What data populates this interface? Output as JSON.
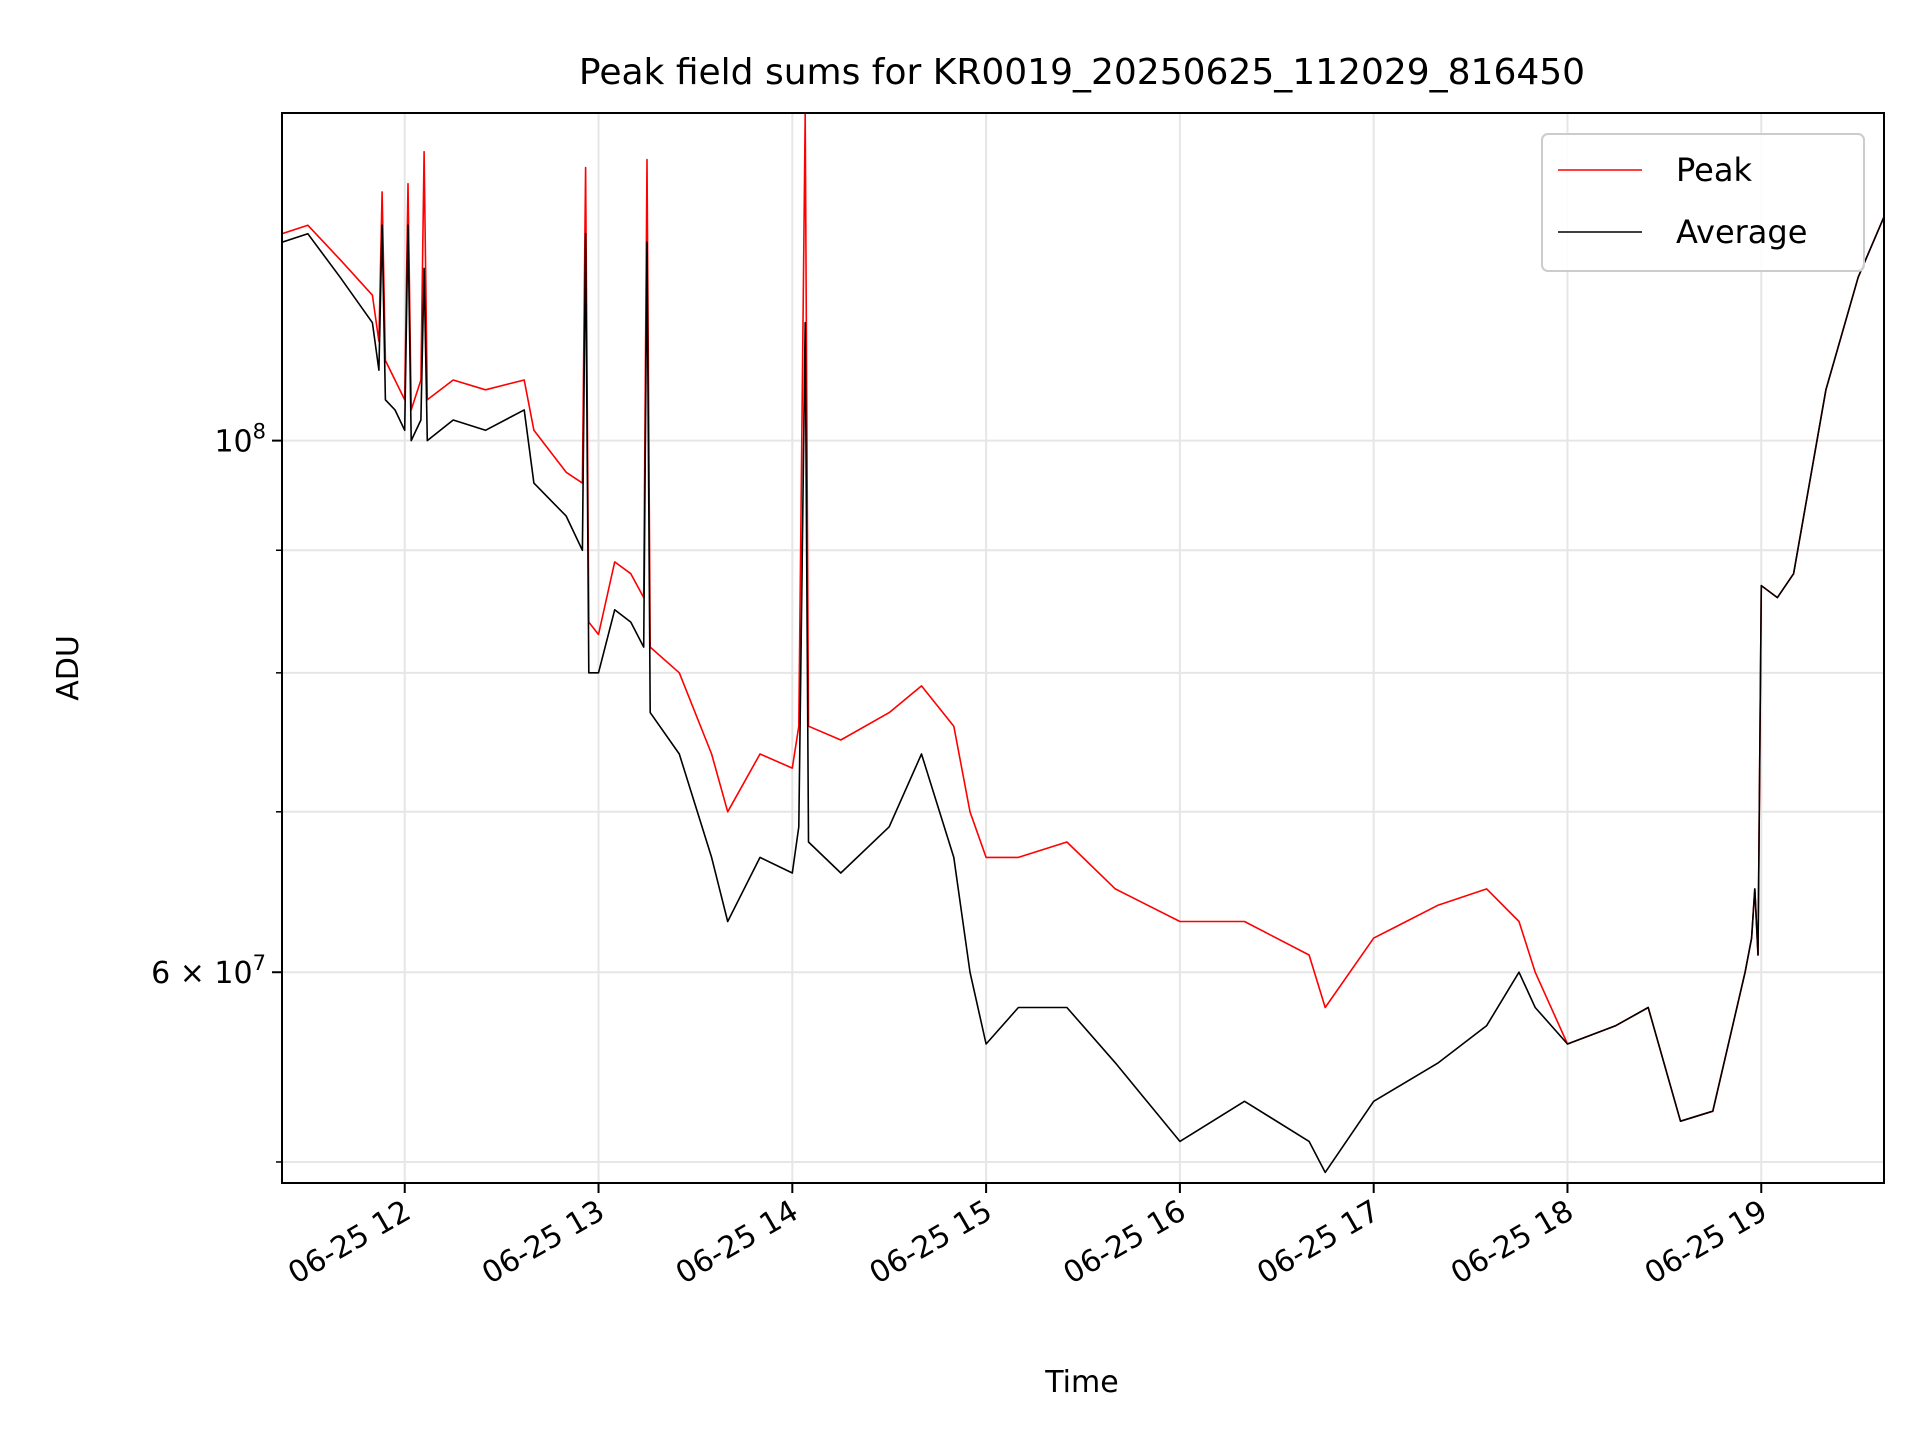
{
  "chart_data": {
    "type": "line",
    "title": "Peak field sums for KR0019_20250625_112029_816450",
    "xlabel": "Time",
    "ylabel": "ADU",
    "y_scale": "log",
    "grid": true,
    "legend_position": "top-right",
    "x_domain": [
      "2025-06-25T11:22",
      "2025-06-25T19:38"
    ],
    "ylim": [
      49000000,
      137000000
    ],
    "x_ticks": [
      {
        "value": "2025-06-25T12:00",
        "label": "06-25 12"
      },
      {
        "value": "2025-06-25T13:00",
        "label": "06-25 13"
      },
      {
        "value": "2025-06-25T14:00",
        "label": "06-25 14"
      },
      {
        "value": "2025-06-25T15:00",
        "label": "06-25 15"
      },
      {
        "value": "2025-06-25T16:00",
        "label": "06-25 16"
      },
      {
        "value": "2025-06-25T17:00",
        "label": "06-25 17"
      },
      {
        "value": "2025-06-25T18:00",
        "label": "06-25 18"
      },
      {
        "value": "2025-06-25T19:00",
        "label": "06-25 19"
      }
    ],
    "y_major_ticks": [
      {
        "value": 60000000,
        "base": "6 × 10",
        "exp": "7"
      },
      {
        "value": 100000000,
        "base": "10",
        "exp": "8"
      }
    ],
    "y_minor_ticks": [
      50000000,
      70000000,
      80000000,
      90000000
    ],
    "series": [
      {
        "name": "Peak",
        "color": "#ff0000",
        "points": [
          [
            "2025-06-25T11:22",
            122000000
          ],
          [
            "2025-06-25T11:30",
            123000000
          ],
          [
            "2025-06-25T11:40",
            119000000
          ],
          [
            "2025-06-25T11:50",
            115000000
          ],
          [
            "2025-06-25T11:52",
            110000000
          ],
          [
            "2025-06-25T11:53",
            127000000
          ],
          [
            "2025-06-25T11:54",
            108000000
          ],
          [
            "2025-06-25T11:57",
            106000000
          ],
          [
            "2025-06-25T12:00",
            104000000
          ],
          [
            "2025-06-25T12:01",
            128000000
          ],
          [
            "2025-06-25T12:02",
            103000000
          ],
          [
            "2025-06-25T12:05",
            106000000
          ],
          [
            "2025-06-25T12:06",
            132000000
          ],
          [
            "2025-06-25T12:07",
            104000000
          ],
          [
            "2025-06-25T12:15",
            106000000
          ],
          [
            "2025-06-25T12:25",
            105000000
          ],
          [
            "2025-06-25T12:37",
            106000000
          ],
          [
            "2025-06-25T12:40",
            101000000
          ],
          [
            "2025-06-25T12:50",
            97000000
          ],
          [
            "2025-06-25T12:55",
            96000000
          ],
          [
            "2025-06-25T12:56",
            130000000
          ],
          [
            "2025-06-25T12:57",
            84000000
          ],
          [
            "2025-06-25T13:00",
            83000000
          ],
          [
            "2025-06-25T13:05",
            89000000
          ],
          [
            "2025-06-25T13:10",
            88000000
          ],
          [
            "2025-06-25T13:14",
            86000000
          ],
          [
            "2025-06-25T13:15",
            131000000
          ],
          [
            "2025-06-25T13:16",
            82000000
          ],
          [
            "2025-06-25T13:25",
            80000000
          ],
          [
            "2025-06-25T13:35",
            74000000
          ],
          [
            "2025-06-25T13:40",
            70000000
          ],
          [
            "2025-06-25T13:50",
            74000000
          ],
          [
            "2025-06-25T14:00",
            73000000
          ],
          [
            "2025-06-25T14:02",
            76000000
          ],
          [
            "2025-06-25T14:04",
            137000000
          ],
          [
            "2025-06-25T14:05",
            76000000
          ],
          [
            "2025-06-25T14:15",
            75000000
          ],
          [
            "2025-06-25T14:30",
            77000000
          ],
          [
            "2025-06-25T14:40",
            79000000
          ],
          [
            "2025-06-25T14:50",
            76000000
          ],
          [
            "2025-06-25T14:55",
            70000000
          ],
          [
            "2025-06-25T15:00",
            67000000
          ],
          [
            "2025-06-25T15:10",
            67000000
          ],
          [
            "2025-06-25T15:25",
            68000000
          ],
          [
            "2025-06-25T15:40",
            65000000
          ],
          [
            "2025-06-25T16:00",
            63000000
          ],
          [
            "2025-06-25T16:20",
            63000000
          ],
          [
            "2025-06-25T16:40",
            61000000
          ],
          [
            "2025-06-25T16:45",
            58000000
          ],
          [
            "2025-06-25T17:00",
            62000000
          ],
          [
            "2025-06-25T17:20",
            64000000
          ],
          [
            "2025-06-25T17:35",
            65000000
          ],
          [
            "2025-06-25T17:45",
            63000000
          ],
          [
            "2025-06-25T17:50",
            60000000
          ],
          [
            "2025-06-25T18:00",
            56000000
          ],
          [
            "2025-06-25T18:15",
            57000000
          ],
          [
            "2025-06-25T18:25",
            58000000
          ],
          [
            "2025-06-25T18:35",
            52000000
          ],
          [
            "2025-06-25T18:45",
            52500000
          ],
          [
            "2025-06-25T18:55",
            60000000
          ],
          [
            "2025-06-25T18:57",
            62000000
          ],
          [
            "2025-06-25T18:58",
            65000000
          ],
          [
            "2025-06-25T18:59",
            61000000
          ],
          [
            "2025-06-25T19:00",
            87000000
          ],
          [
            "2025-06-25T19:05",
            86000000
          ],
          [
            "2025-06-25T19:10",
            88000000
          ],
          [
            "2025-06-25T19:20",
            105000000
          ],
          [
            "2025-06-25T19:30",
            117000000
          ],
          [
            "2025-06-25T19:38",
            124000000
          ]
        ]
      },
      {
        "name": "Average",
        "color": "#000000",
        "points": [
          [
            "2025-06-25T11:22",
            121000000
          ],
          [
            "2025-06-25T11:30",
            122000000
          ],
          [
            "2025-06-25T11:40",
            117000000
          ],
          [
            "2025-06-25T11:50",
            112000000
          ],
          [
            "2025-06-25T11:52",
            107000000
          ],
          [
            "2025-06-25T11:53",
            123000000
          ],
          [
            "2025-06-25T11:54",
            104000000
          ],
          [
            "2025-06-25T11:57",
            103000000
          ],
          [
            "2025-06-25T12:00",
            101000000
          ],
          [
            "2025-06-25T12:01",
            123000000
          ],
          [
            "2025-06-25T12:02",
            100000000
          ],
          [
            "2025-06-25T12:05",
            102000000
          ],
          [
            "2025-06-25T12:06",
            118000000
          ],
          [
            "2025-06-25T12:07",
            100000000
          ],
          [
            "2025-06-25T12:15",
            102000000
          ],
          [
            "2025-06-25T12:25",
            101000000
          ],
          [
            "2025-06-25T12:37",
            103000000
          ],
          [
            "2025-06-25T12:40",
            96000000
          ],
          [
            "2025-06-25T12:50",
            93000000
          ],
          [
            "2025-06-25T12:55",
            90000000
          ],
          [
            "2025-06-25T12:56",
            122000000
          ],
          [
            "2025-06-25T12:57",
            80000000
          ],
          [
            "2025-06-25T13:00",
            80000000
          ],
          [
            "2025-06-25T13:05",
            85000000
          ],
          [
            "2025-06-25T13:10",
            84000000
          ],
          [
            "2025-06-25T13:14",
            82000000
          ],
          [
            "2025-06-25T13:15",
            121000000
          ],
          [
            "2025-06-25T13:16",
            77000000
          ],
          [
            "2025-06-25T13:25",
            74000000
          ],
          [
            "2025-06-25T13:35",
            67000000
          ],
          [
            "2025-06-25T13:40",
            63000000
          ],
          [
            "2025-06-25T13:50",
            67000000
          ],
          [
            "2025-06-25T14:00",
            66000000
          ],
          [
            "2025-06-25T14:02",
            69000000
          ],
          [
            "2025-06-25T14:04",
            112000000
          ],
          [
            "2025-06-25T14:05",
            68000000
          ],
          [
            "2025-06-25T14:15",
            66000000
          ],
          [
            "2025-06-25T14:30",
            69000000
          ],
          [
            "2025-06-25T14:40",
            74000000
          ],
          [
            "2025-06-25T14:50",
            67000000
          ],
          [
            "2025-06-25T14:55",
            60000000
          ],
          [
            "2025-06-25T15:00",
            56000000
          ],
          [
            "2025-06-25T15:10",
            58000000
          ],
          [
            "2025-06-25T15:25",
            58000000
          ],
          [
            "2025-06-25T15:40",
            55000000
          ],
          [
            "2025-06-25T16:00",
            51000000
          ],
          [
            "2025-06-25T16:20",
            53000000
          ],
          [
            "2025-06-25T16:40",
            51000000
          ],
          [
            "2025-06-25T16:45",
            49500000
          ],
          [
            "2025-06-25T17:00",
            53000000
          ],
          [
            "2025-06-25T17:20",
            55000000
          ],
          [
            "2025-06-25T17:35",
            57000000
          ],
          [
            "2025-06-25T17:45",
            60000000
          ],
          [
            "2025-06-25T17:50",
            58000000
          ],
          [
            "2025-06-25T18:00",
            56000000
          ],
          [
            "2025-06-25T18:15",
            57000000
          ],
          [
            "2025-06-25T18:25",
            58000000
          ],
          [
            "2025-06-25T18:35",
            52000000
          ],
          [
            "2025-06-25T18:45",
            52500000
          ],
          [
            "2025-06-25T18:55",
            60000000
          ],
          [
            "2025-06-25T18:57",
            62000000
          ],
          [
            "2025-06-25T18:58",
            65000000
          ],
          [
            "2025-06-25T18:59",
            61000000
          ],
          [
            "2025-06-25T19:00",
            87000000
          ],
          [
            "2025-06-25T19:05",
            86000000
          ],
          [
            "2025-06-25T19:10",
            88000000
          ],
          [
            "2025-06-25T19:20",
            105000000
          ],
          [
            "2025-06-25T19:30",
            117000000
          ],
          [
            "2025-06-25T19:38",
            124000000
          ]
        ]
      }
    ]
  }
}
